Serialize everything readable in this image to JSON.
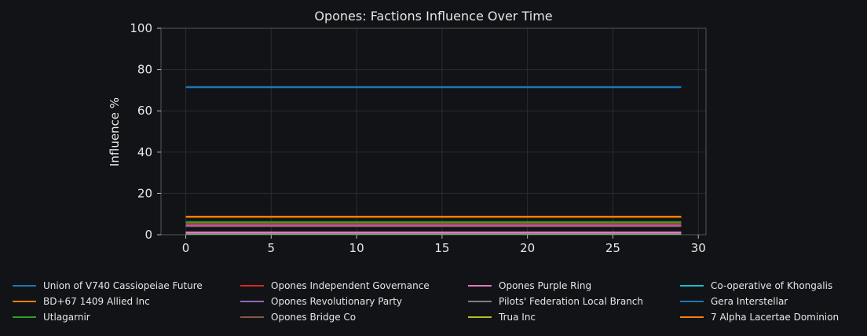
{
  "chart_data": {
    "type": "line",
    "title": "Opones: Factions Influence Over Time",
    "xlabel": "",
    "ylabel": "Influence %",
    "xlim": [
      -1.45,
      30.45
    ],
    "ylim": [
      0,
      100
    ],
    "xticks": [
      "0",
      "5",
      "10",
      "15",
      "20",
      "25",
      "30"
    ],
    "yticks": [
      "0",
      "20",
      "40",
      "60",
      "80",
      "100"
    ],
    "grid": true,
    "legend_placement": "bottom",
    "x": [
      0,
      29
    ],
    "series": [
      {
        "name": "Union of V740 Cassiopeiae Future",
        "color": "#1f77b4",
        "values": [
          71.5,
          71.5
        ]
      },
      {
        "name": "BD+67 1409 Allied Inc",
        "color": "#ff7f0e",
        "values": [
          8.7,
          8.7
        ]
      },
      {
        "name": "Utlagarnir",
        "color": "#2ca02c",
        "values": [
          6.1,
          6.1
        ]
      },
      {
        "name": "Opones Independent Governance",
        "color": "#d62728",
        "values": [
          5.3,
          5.3
        ]
      },
      {
        "name": "Opones Revolutionary Party",
        "color": "#9467bd",
        "values": [
          4.6,
          4.6
        ]
      },
      {
        "name": "Opones Bridge Co",
        "color": "#8c564b",
        "values": [
          4.2,
          4.2
        ]
      },
      {
        "name": "Opones Purple Ring",
        "color": "#e377c2",
        "values": [
          1.1,
          1.1
        ]
      },
      {
        "name": "Pilots' Federation Local Branch",
        "color": "#7f7f7f",
        "values": [
          0.8,
          0.8
        ]
      },
      {
        "name": "Trua Inc",
        "color": "#bcbd22",
        "values": [
          0.6,
          0.6
        ]
      },
      {
        "name": "Co-operative of Khongalis",
        "color": "#17becf",
        "values": [
          0.5,
          0.5
        ]
      },
      {
        "name": "Gera Interstellar",
        "color": "#1f77b4",
        "values": [
          0.4,
          0.4
        ]
      },
      {
        "name": "7 Alpha Lacertae Dominion",
        "color": "#ff7f0e",
        "values": [
          0.4,
          0.4
        ]
      }
    ]
  }
}
